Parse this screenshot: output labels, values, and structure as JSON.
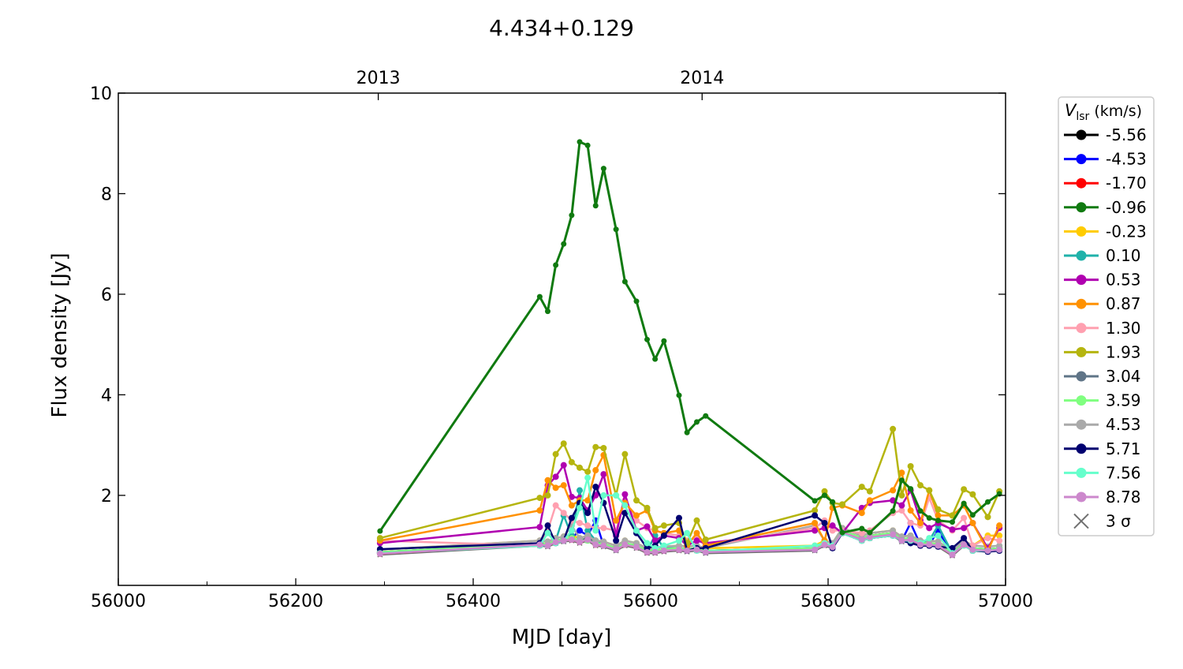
{
  "chart_data": {
    "type": "line",
    "title": "4.434+0.129",
    "xlabel": "MJD [day]",
    "ylabel": "Flux density [Jy]",
    "xlim": [
      56000,
      57000
    ],
    "ylim": [
      0.21,
      10
    ],
    "xticks": [
      56000,
      56200,
      56400,
      56600,
      56800,
      57000
    ],
    "xtick_labels": [
      "56000",
      "56200",
      "56400",
      "56600",
      "56800",
      "57000"
    ],
    "xminor": [
      56100,
      56300,
      56500,
      56700,
      56900
    ],
    "yticks": [
      2,
      4,
      6,
      8,
      10
    ],
    "ytick_labels": [
      "2",
      "4",
      "6",
      "8",
      "10"
    ],
    "top_axis": {
      "ticks": [
        56293,
        56658
      ],
      "labels": [
        "2013",
        "2014"
      ]
    },
    "legend": {
      "title_main": "V",
      "title_sub": "lsr",
      "title_rest": " (km/s)",
      "placement": "outside-right"
    },
    "grid": false,
    "x": [
      56295,
      56475,
      56484,
      56493,
      56502,
      56511,
      56520,
      56529,
      56538,
      56547,
      56561,
      56571,
      56584,
      56596,
      56605,
      56615,
      56632,
      56641,
      56652,
      56662,
      56785,
      56796,
      56805,
      56816,
      56838,
      56847,
      56873,
      56883,
      56893,
      56904,
      56914,
      56924,
      56940,
      56953,
      56963,
      56980,
      56993
    ],
    "series": [
      {
        "name": "-5.56",
        "color": "#000000",
        "values": [
          0.87,
          1.05,
          1.03,
          1.1,
          1.13,
          1.15,
          1.1,
          1.15,
          1.05,
          1.03,
          0.95,
          1.05,
          1.0,
          0.9,
          0.9,
          0.93,
          0.95,
          0.93,
          0.95,
          0.9,
          0.95,
          1.05,
          1.0,
          1.3,
          1.15,
          1.2,
          1.25,
          1.13,
          1.15,
          1.05,
          1.05,
          1.03,
          0.85,
          1.05,
          0.95,
          0.93,
          0.95
        ]
      },
      {
        "name": "-4.53",
        "color": "#0000ff",
        "values": [
          0.86,
          1.02,
          1.0,
          1.08,
          1.1,
          1.15,
          1.3,
          1.2,
          1.5,
          1.0,
          0.92,
          1.05,
          0.97,
          0.87,
          0.87,
          0.9,
          0.92,
          0.9,
          0.92,
          0.87,
          0.92,
          1.02,
          0.97,
          1.27,
          1.12,
          1.17,
          1.22,
          1.1,
          1.45,
          1.02,
          1.02,
          1.3,
          0.82,
          1.02,
          0.92,
          0.9,
          0.92
        ]
      },
      {
        "name": "-1.70",
        "color": "#ff0000",
        "values": [
          0.84,
          1.02,
          1.0,
          1.07,
          1.1,
          1.12,
          1.07,
          1.12,
          1.02,
          1.0,
          0.92,
          1.02,
          0.97,
          0.87,
          0.87,
          0.9,
          0.92,
          0.9,
          0.92,
          0.87,
          0.92,
          1.02,
          0.97,
          1.27,
          1.12,
          1.17,
          1.22,
          1.1,
          1.12,
          1.02,
          1.02,
          1.0,
          0.82,
          1.02,
          0.92,
          0.9,
          0.92
        ]
      },
      {
        "name": "-0.96",
        "color": "#107a10",
        "values": [
          1.29,
          5.95,
          5.66,
          6.58,
          7.0,
          7.57,
          9.03,
          8.96,
          7.76,
          8.5,
          7.29,
          6.25,
          5.86,
          5.1,
          4.71,
          5.07,
          3.99,
          3.25,
          3.46,
          3.58,
          1.89,
          2.0,
          1.87,
          1.26,
          1.34,
          1.26,
          1.69,
          2.3,
          2.13,
          1.69,
          1.55,
          1.5,
          1.47,
          1.84,
          1.61,
          1.87,
          2.03
        ]
      },
      {
        "name": "-0.23",
        "color": "#ffcc00",
        "values": [
          0.92,
          1.1,
          1.08,
          1.15,
          1.18,
          1.2,
          1.15,
          1.2,
          1.1,
          1.08,
          1.0,
          1.1,
          1.05,
          0.95,
          0.95,
          0.98,
          1.0,
          0.98,
          1.0,
          0.95,
          1.0,
          1.1,
          1.05,
          1.35,
          1.2,
          1.25,
          1.3,
          1.18,
          1.2,
          1.1,
          1.1,
          1.08,
          0.9,
          1.1,
          1.0,
          1.2,
          1.2
        ]
      },
      {
        "name": "0.10",
        "color": "#20b2aa",
        "values": [
          0.85,
          1.0,
          1.0,
          1.1,
          1.6,
          1.2,
          2.1,
          1.3,
          1.1,
          1.0,
          0.92,
          1.05,
          1.0,
          0.9,
          1.2,
          0.95,
          0.95,
          0.9,
          0.92,
          0.87,
          0.92,
          1.02,
          0.97,
          1.27,
          1.12,
          1.17,
          1.22,
          1.1,
          1.12,
          1.05,
          1.1,
          1.4,
          0.85,
          1.02,
          0.92,
          0.9,
          0.92
        ]
      },
      {
        "name": "0.53",
        "color": "#b000b0",
        "values": [
          1.05,
          1.37,
          2.2,
          2.37,
          2.6,
          1.97,
          1.95,
          1.7,
          2.0,
          2.42,
          1.2,
          2.02,
          1.3,
          1.38,
          1.1,
          1.2,
          1.15,
          1.0,
          1.1,
          1.05,
          1.3,
          1.35,
          1.4,
          1.25,
          1.75,
          1.85,
          1.9,
          1.8,
          2.1,
          1.5,
          1.35,
          1.45,
          1.32,
          1.35,
          1.45,
          0.95,
          1.35
        ]
      },
      {
        "name": "0.87",
        "color": "#ff9100",
        "values": [
          1.1,
          1.7,
          2.3,
          2.15,
          2.2,
          1.8,
          1.9,
          1.9,
          2.5,
          2.8,
          1.5,
          1.85,
          1.6,
          1.7,
          1.3,
          1.25,
          1.3,
          1.0,
          1.25,
          1.0,
          1.45,
          1.1,
          1.75,
          1.8,
          1.65,
          1.9,
          2.1,
          2.45,
          1.7,
          1.45,
          2.1,
          1.6,
          1.6,
          1.8,
          1.45,
          0.9,
          1.4
        ]
      },
      {
        "name": "1.30",
        "color": "#ffa0b0",
        "values": [
          1.1,
          1.0,
          1.3,
          1.8,
          1.65,
          1.5,
          1.45,
          1.4,
          1.35,
          1.35,
          1.3,
          1.9,
          1.5,
          1.35,
          1.3,
          1.25,
          1.2,
          1.1,
          1.15,
          1.0,
          1.35,
          1.5,
          1.3,
          1.3,
          1.25,
          1.3,
          1.65,
          1.7,
          1.45,
          1.4,
          1.95,
          1.5,
          1.3,
          1.55,
          1.0,
          1.15,
          1.1
        ]
      },
      {
        "name": "1.93",
        "color": "#b5b50f",
        "values": [
          1.15,
          1.95,
          2.0,
          2.82,
          3.03,
          2.66,
          2.55,
          2.47,
          2.96,
          2.94,
          2.0,
          2.82,
          1.9,
          1.75,
          1.35,
          1.4,
          1.45,
          1.05,
          1.5,
          1.12,
          1.7,
          2.08,
          1.85,
          1.82,
          2.17,
          2.08,
          3.32,
          2.0,
          2.58,
          2.2,
          2.1,
          1.72,
          1.6,
          2.12,
          2.02,
          1.57,
          2.08
        ]
      },
      {
        "name": "3.04",
        "color": "#5f7487",
        "values": [
          0.87,
          1.05,
          1.03,
          1.1,
          1.13,
          1.15,
          1.1,
          1.15,
          1.05,
          1.03,
          0.95,
          1.05,
          1.0,
          0.9,
          0.9,
          0.93,
          0.95,
          0.93,
          0.95,
          0.9,
          0.95,
          1.05,
          1.0,
          1.3,
          1.15,
          1.2,
          1.25,
          1.13,
          1.15,
          1.05,
          1.05,
          1.03,
          0.85,
          1.05,
          0.95,
          0.93,
          0.95
        ]
      },
      {
        "name": "3.59",
        "color": "#80ff80",
        "values": [
          0.87,
          1.05,
          1.03,
          1.1,
          1.13,
          1.15,
          1.1,
          1.1,
          1.05,
          1.03,
          0.95,
          1.05,
          1.0,
          0.9,
          0.9,
          0.93,
          0.95,
          0.93,
          0.95,
          0.9,
          0.95,
          1.05,
          1.0,
          1.3,
          1.15,
          1.2,
          1.25,
          1.13,
          1.15,
          1.05,
          1.05,
          1.03,
          0.85,
          1.05,
          0.95,
          0.93,
          0.95
        ]
      },
      {
        "name": "4.53",
        "color": "#aaaaaa",
        "values": [
          0.92,
          1.1,
          1.08,
          1.15,
          1.18,
          1.4,
          1.15,
          1.2,
          1.1,
          1.08,
          1.0,
          1.1,
          1.05,
          0.95,
          0.95,
          0.98,
          1.0,
          0.98,
          1.0,
          0.95,
          1.4,
          1.1,
          1.05,
          1.35,
          1.2,
          1.25,
          1.3,
          1.18,
          1.2,
          1.1,
          1.1,
          1.08,
          0.9,
          1.1,
          1.0,
          0.98,
          1.0
        ]
      },
      {
        "name": "5.71",
        "color": "#000070",
        "values": [
          0.93,
          1.05,
          1.4,
          1.05,
          1.1,
          1.55,
          1.85,
          1.65,
          2.17,
          1.85,
          1.1,
          1.65,
          1.25,
          0.95,
          1.0,
          1.2,
          1.55,
          0.9,
          0.95,
          0.95,
          1.6,
          1.45,
          0.95,
          1.25,
          1.1,
          1.15,
          1.2,
          1.1,
          1.05,
          1.0,
          1.0,
          0.98,
          0.95,
          1.15,
          0.9,
          0.88,
          0.9
        ]
      },
      {
        "name": "7.56",
        "color": "#66ffcc",
        "values": [
          0.85,
          1.0,
          1.25,
          1.05,
          1.1,
          1.3,
          1.75,
          2.35,
          1.3,
          2.0,
          2.0,
          1.8,
          1.3,
          1.05,
          0.95,
          1.0,
          1.1,
          1.25,
          0.9,
          0.88,
          1.0,
          1.05,
          1.0,
          1.25,
          1.1,
          1.15,
          1.2,
          1.1,
          1.1,
          1.05,
          1.15,
          1.2,
          0.85,
          1.0,
          0.9,
          0.9,
          0.92
        ]
      },
      {
        "name": "8.78",
        "color": "#cc88cc",
        "values": [
          0.84,
          1.02,
          1.0,
          1.07,
          1.1,
          1.12,
          1.07,
          1.12,
          1.02,
          1.0,
          0.92,
          1.02,
          0.97,
          0.87,
          0.87,
          0.9,
          0.92,
          0.9,
          0.92,
          0.87,
          0.92,
          1.02,
          0.97,
          1.27,
          1.12,
          1.17,
          1.22,
          1.1,
          1.12,
          1.02,
          1.02,
          1.0,
          0.82,
          1.02,
          0.92,
          0.9,
          0.92
        ]
      },
      {
        "name": "3 σ",
        "color": "#707070",
        "marker": "x",
        "values": [
          0.82,
          1.0,
          0.98,
          1.05,
          1.08,
          1.1,
          1.05,
          1.1,
          1.0,
          0.98,
          0.9,
          1.0,
          0.95,
          0.85,
          0.85,
          0.88,
          0.9,
          0.88,
          0.9,
          0.85,
          0.9,
          1.0,
          0.95,
          1.25,
          1.1,
          1.15,
          1.2,
          1.08,
          1.1,
          1.0,
          1.0,
          0.98,
          0.8,
          1.0,
          0.9,
          0.88,
          0.9
        ]
      }
    ]
  }
}
